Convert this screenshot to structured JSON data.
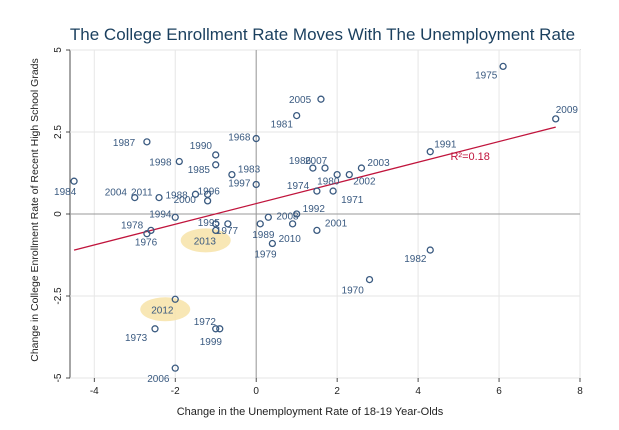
{
  "chart_data": {
    "type": "scatter",
    "title": "The College Enrollment Rate Moves With The Unemployment Rate",
    "xlabel": "Change in the Unemployment Rate of 18-19 Year-Olds",
    "ylabel": "Change in College Enrollment Rate of Recent High School Grads",
    "xlim": [
      -4.6,
      8.0
    ],
    "ylim": [
      -5.0,
      5.0
    ],
    "xticks": [
      -4,
      -2,
      0,
      2,
      4,
      6,
      8
    ],
    "yticks": [
      -5,
      -2.5,
      0,
      2.5,
      5
    ],
    "xtick_labels": [
      "-4",
      "-2",
      "0",
      "2",
      "4",
      "6",
      "8"
    ],
    "ytick_labels": [
      "-5",
      "-2.5",
      "0",
      "2.5",
      "5"
    ],
    "grid": true,
    "reference_lines": {
      "x": 0,
      "y": 0
    },
    "point_color": "#3a5a80",
    "fit_line": {
      "x": [
        -4.5,
        7.4
      ],
      "y": [
        -1.1,
        2.65
      ],
      "color": "#c0143c",
      "label": "R²=0.18"
    },
    "highlight_color": "#f7e3a8",
    "highlighted_years": [
      "2013",
      "2012"
    ],
    "points": [
      {
        "label": "1975",
        "x": 6.1,
        "y": 4.5
      },
      {
        "label": "2009",
        "x": 7.4,
        "y": 2.9
      },
      {
        "label": "2005",
        "x": 1.6,
        "y": 3.5
      },
      {
        "label": "1981",
        "x": 1.0,
        "y": 3.0
      },
      {
        "label": "1987",
        "x": -2.7,
        "y": 2.2
      },
      {
        "label": "1990",
        "x": -1.0,
        "y": 1.8
      },
      {
        "label": "1968",
        "x": 0.0,
        "y": 2.3
      },
      {
        "label": "1998",
        "x": -1.9,
        "y": 1.6
      },
      {
        "label": "1985",
        "x": -1.0,
        "y": 1.5
      },
      {
        "label": "1991",
        "x": 4.3,
        "y": 1.9
      },
      {
        "label": "1986",
        "x": 1.4,
        "y": 1.4
      },
      {
        "label": "2007",
        "x": 1.7,
        "y": 1.4
      },
      {
        "label": "2003",
        "x": 2.6,
        "y": 1.4
      },
      {
        "label": "1980",
        "x": 2.0,
        "y": 1.2
      },
      {
        "label": "2002",
        "x": 2.3,
        "y": 1.2
      },
      {
        "label": "1983",
        "x": -0.6,
        "y": 1.2
      },
      {
        "label": "1974",
        "x": 1.5,
        "y": 0.7
      },
      {
        "label": "1971",
        "x": 1.9,
        "y": 0.7
      },
      {
        "label": "1996",
        "x": -1.2,
        "y": 0.6
      },
      {
        "label": "1988",
        "x": -1.5,
        "y": 0.6
      },
      {
        "label": "1997",
        "x": 0.0,
        "y": 0.9
      },
      {
        "label": "1984",
        "x": -4.5,
        "y": 1.0
      },
      {
        "label": "2004",
        "x": -3.0,
        "y": 0.5
      },
      {
        "label": "2011",
        "x": -2.4,
        "y": 0.5
      },
      {
        "label": "2000",
        "x": -1.2,
        "y": 0.4
      },
      {
        "label": "1994",
        "x": -2.0,
        "y": -0.1
      },
      {
        "label": "2008",
        "x": 0.3,
        "y": -0.1
      },
      {
        "label": "1992",
        "x": 1.0,
        "y": 0.0
      },
      {
        "label": "2001",
        "x": 1.5,
        "y": -0.5
      },
      {
        "label": "1978",
        "x": -2.6,
        "y": -0.5
      },
      {
        "label": "1976",
        "x": -2.7,
        "y": -0.6
      },
      {
        "label": "1995",
        "x": -1.0,
        "y": -0.3
      },
      {
        "label": "1977",
        "x": -0.7,
        "y": -0.3
      },
      {
        "label": "2013",
        "x": -1.0,
        "y": -0.5
      },
      {
        "label": "1989",
        "x": 0.1,
        "y": -0.3
      },
      {
        "label": "2010",
        "x": 0.9,
        "y": -0.3
      },
      {
        "label": "1979",
        "x": 0.4,
        "y": -0.9
      },
      {
        "label": "1982",
        "x": 4.3,
        "y": -1.1
      },
      {
        "label": "1970",
        "x": 2.8,
        "y": -2.0
      },
      {
        "label": "2012",
        "x": -2.0,
        "y": -2.6
      },
      {
        "label": "1972",
        "x": -1.0,
        "y": -3.5
      },
      {
        "label": "1999",
        "x": -0.9,
        "y": -3.5
      },
      {
        "label": "1973",
        "x": -2.5,
        "y": -3.5
      },
      {
        "label": "2006",
        "x": -2.0,
        "y": -4.7
      }
    ]
  }
}
